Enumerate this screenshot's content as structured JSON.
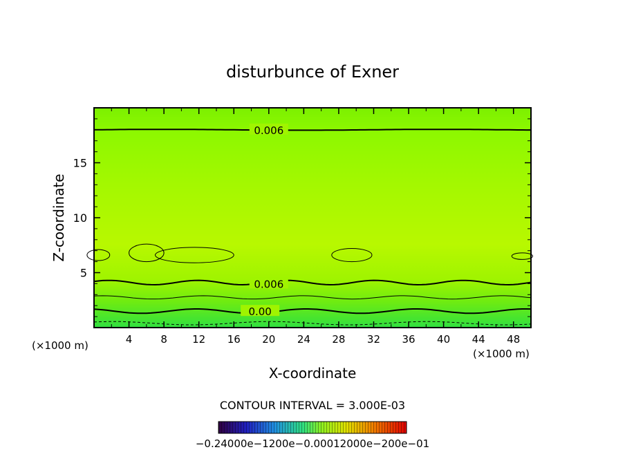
{
  "chart_data": {
    "type": "heatmap",
    "title": "disturbunce of Exner",
    "xlabel": "X-coordinate",
    "ylabel": "Z-coordinate",
    "x_unit_left": "(×1000 m)",
    "x_unit_right": "(×1000 m)",
    "xlim": [
      0,
      50
    ],
    "ylim": [
      0,
      20
    ],
    "x_ticks": [
      4,
      8,
      12,
      16,
      20,
      24,
      28,
      32,
      36,
      40,
      44,
      48
    ],
    "y_ticks": [
      5,
      10,
      15
    ],
    "contour_labels": [
      {
        "text": "0.006",
        "x": 20,
        "y": 18
      },
      {
        "text": "0.006",
        "x": 20,
        "y": 4
      },
      {
        "text": "0.00",
        "x": 19,
        "y": 1.5
      }
    ],
    "contour_interval_text": "CONTOUR INTERVAL = 3.000E-03",
    "colorbar_labels": [
      "-0.2400e-01",
      "-0.1200e-01",
      "0.000",
      "0.1200e-01",
      "0.2400e-01"
    ],
    "colorbar_label_display": "−0.24000e−1200e−0.00012000e−200e−01"
  }
}
